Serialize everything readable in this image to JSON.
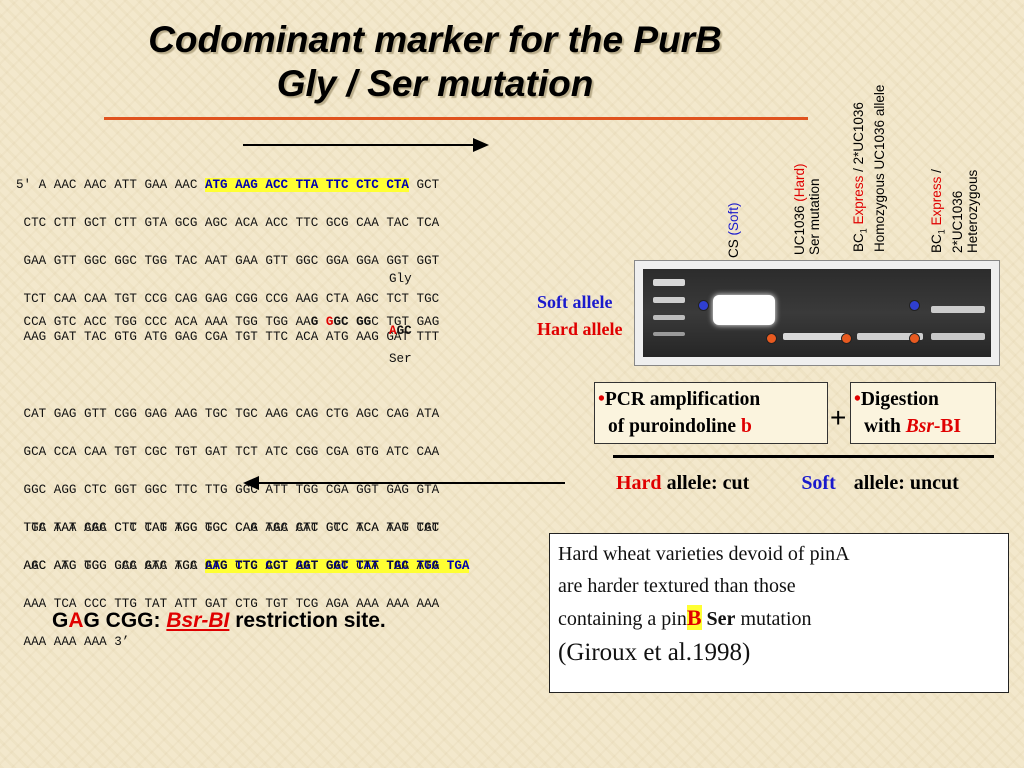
{
  "title": {
    "line1": "Codominant marker for the PurB",
    "line2": "Gly / Ser mutation"
  },
  "seq_block1": {
    "line1_pre": "5' A AAC AAC ATT GAA AAC ",
    "line1_hl": "ATG AAG ACC TTA TTC CTC CTA",
    "line1_post": " GCT",
    "lines": [
      " CTC CTT GCT CTT GTA GCG AGC ACA ACC TTC GCG CAA TAC TCA",
      " GAA GTT GGC GGC TGG TAC AAT GAA GTT GGC GGA GGA GGT GGT",
      " TCT CAA CAA TGT CCG CAG GAG CGG CCG AAG CTA AGC TCT TGC",
      " AAG GAT TAC GTG ATG GAG CGA TGT TTC ACA ATG AAG GAT TTT"
    ]
  },
  "mutation": {
    "gly": "Gly",
    "line_pre": " CCA GTC ACC TGG CCC ACA AAA TGG TGG AA",
    "g1": "G",
    "space": " ",
    "g2": "G",
    "gc": "GC",
    "gg": "GG",
    "line_post": "C TGT GAG",
    "hard_a": "A",
    "hard_gc": "GC",
    "ser": "Ser",
    "soft_allele": "Soft allele",
    "hard_allele": "Hard allele"
  },
  "seq_block2": {
    "lines": [
      " CAT GAG GTT CGG GAG AAG TGC TGC AAG CAG CTG AGC CAG ATA",
      " GCA CCA CAA TGT CGC TGT GAT TCT ATC CGG CGA GTG ATC CAA",
      " GGC AGG CTC GGT GGC TTC TTG GGC ATT TGG CGA GGT GAG GTA",
      " TTC AAA CAA CTT CAG AGG GCC CAG AGC CTC CCC TCA AAG TGC"
    ],
    "last_pre": " AAC ATG GGC GCC GAC TGC ",
    "last_hl": "AAG TTC CCT AGT GGC TAT TAC TGG TGA"
  },
  "seq_block3": {
    "lines": [
      " TGA TAT AGC CTC TAT TCG TGC CAA TAA AAT GTC ACA TAT CAT",
      " AGC AAG TGG CAA ATA AGA GTG CTG AGT GAT GAT CTA TGA ATA",
      " AAA TCA CCC TTG TAT ATT GAT CTG TGT TCG AGA AAA AAA AAA",
      " AAA AAA AAA 3’"
    ]
  },
  "restriction": {
    "g": "G",
    "a": "A",
    "rest": "G CGG: ",
    "enzyme": "Bsr-BI",
    "suffix": " restriction site."
  },
  "lanes": {
    "cs": {
      "pre": "CS ",
      "paren": "(Soft)"
    },
    "uc_hard": {
      "pre": "UC1036 ",
      "paren": "(Hard)",
      "line2": "Ser mutation"
    },
    "bc1_homo": {
      "pre": "BC",
      "sub": "1",
      "express": "Express",
      "post": " / 2*UC1036",
      "line2": "Homozygous UC1036 allele"
    },
    "bc1_het": {
      "pre": "BC",
      "sub": "1",
      "express": "Express",
      "post": " /",
      "line2": "2*UC1036",
      "line3": "Heterozygous"
    }
  },
  "pcr_box": {
    "bullet": "•",
    "line1": "PCR amplification",
    "line2_pre": "of puroindoline ",
    "line2_b": "b"
  },
  "plus": "+",
  "digest_box": {
    "bullet": "•",
    "line1": "Digestion",
    "line2_pre": "with ",
    "enzyme_italic": "Bsr",
    "enzyme_rest": "-BI"
  },
  "alleles": {
    "hard": "Hard",
    "hard_rest": " allele: cut",
    "soft": "Soft",
    "soft_rest": "allele: uncut"
  },
  "citation": {
    "line1": "Hard wheat varieties devoid of pinA",
    "line2": "are harder textured than those",
    "line3_pre": "containing a pin",
    "line3_b": "B",
    "line3_ser": " Ser",
    "line3_post": " mutation",
    "line4": "(Giroux et al.1998)"
  },
  "colors": {
    "accent_red": "#e00000",
    "blue": "#1a1acc",
    "highlight": "#ffff33",
    "title_rule": "#e0521e"
  }
}
